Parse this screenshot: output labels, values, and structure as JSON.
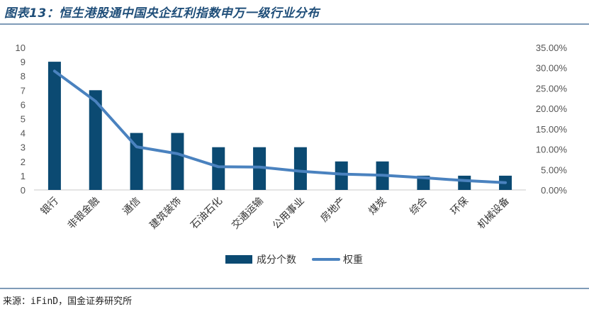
{
  "header": {
    "title": "图表13：恒生港股通中国央企红利指数申万一级行业分布"
  },
  "footer": {
    "source": "来源：iFinD，国金证券研究所"
  },
  "chart_data": {
    "type": "bar+line",
    "categories": [
      "银行",
      "非银金融",
      "通信",
      "建筑装饰",
      "石油石化",
      "交通运输",
      "公用事业",
      "房地产",
      "煤炭",
      "综合",
      "环保",
      "机械设备"
    ],
    "series": [
      {
        "name": "成分个数",
        "type": "bar",
        "axis": "left",
        "color": "#0b4a72",
        "values": [
          9,
          7,
          4,
          4,
          3,
          3,
          3,
          2,
          2,
          1,
          1,
          1
        ]
      },
      {
        "name": "权重",
        "type": "line",
        "axis": "right",
        "color": "#4a82bf",
        "values": [
          0.292,
          0.218,
          0.106,
          0.089,
          0.057,
          0.056,
          0.046,
          0.039,
          0.036,
          0.03,
          0.023,
          0.018
        ]
      }
    ],
    "yleft": {
      "ylim": [
        0,
        10
      ],
      "ticks": [
        "0",
        "1",
        "2",
        "3",
        "4",
        "5",
        "6",
        "7",
        "8",
        "9",
        "10"
      ]
    },
    "yright": {
      "ylim": [
        0,
        0.35
      ],
      "ticks": [
        "0.00%",
        "5.00%",
        "10.00%",
        "15.00%",
        "20.00%",
        "25.00%",
        "30.00%",
        "35.00%"
      ]
    },
    "legend": "bottom",
    "grid": false
  }
}
